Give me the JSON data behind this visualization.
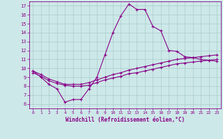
{
  "xlabel": "Windchill (Refroidissement éolien,°C)",
  "xlim": [
    -0.5,
    23.5
  ],
  "ylim": [
    5.5,
    17.5
  ],
  "xticks": [
    0,
    1,
    2,
    3,
    4,
    5,
    6,
    7,
    8,
    9,
    10,
    11,
    12,
    13,
    14,
    15,
    16,
    17,
    18,
    19,
    20,
    21,
    22,
    23
  ],
  "yticks": [
    6,
    7,
    8,
    9,
    10,
    11,
    12,
    13,
    14,
    15,
    16,
    17
  ],
  "bg_color": "#cde8e8",
  "grid_color": "#aacccc",
  "line_color": "#880088",
  "line1_y": [
    9.7,
    9.0,
    8.2,
    7.7,
    6.2,
    6.5,
    6.5,
    7.7,
    9.0,
    11.5,
    14.0,
    15.9,
    17.2,
    16.6,
    16.6,
    14.7,
    14.2,
    12.0,
    11.9,
    11.3,
    11.2,
    11.0,
    10.9,
    10.8
  ],
  "line2_y": [
    9.7,
    9.3,
    8.8,
    8.5,
    8.2,
    8.2,
    8.2,
    8.4,
    8.7,
    9.0,
    9.3,
    9.5,
    9.8,
    10.0,
    10.2,
    10.4,
    10.6,
    10.8,
    11.0,
    11.1,
    11.2,
    11.3,
    11.4,
    11.5
  ],
  "line3_y": [
    9.5,
    9.1,
    8.6,
    8.3,
    8.1,
    8.0,
    8.0,
    8.1,
    8.4,
    8.7,
    8.9,
    9.1,
    9.4,
    9.5,
    9.7,
    9.9,
    10.1,
    10.3,
    10.5,
    10.6,
    10.7,
    10.8,
    10.9,
    11.0
  ]
}
